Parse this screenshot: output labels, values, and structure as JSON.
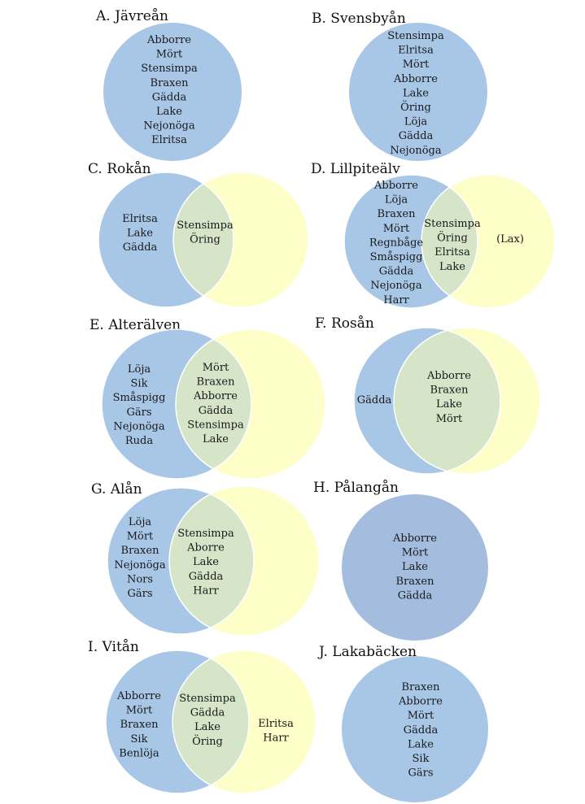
{
  "colors": {
    "blue": "#a8c7e6",
    "blue_dark": "#a4bddf",
    "yellow": "#fefec8",
    "overlap": "#d6e4c8",
    "outline": "#ffffff"
  },
  "diagrams": [
    {
      "id": "A",
      "title": "A.  Jävreån",
      "type": "single",
      "left": [
        "Abborre",
        "Mört",
        "Stensimpa",
        "Braxen",
        "Gädda",
        "Lake",
        "Nejonöga",
        "Elritsa"
      ],
      "overlap": [],
      "right": []
    },
    {
      "id": "B",
      "title": "B.  Svensbyån",
      "type": "single",
      "left": [
        "Stensimpa",
        "Elritsa",
        "Mört",
        "Abborre",
        "Lake",
        "Öring",
        "Löja",
        "Gädda",
        "Nejonöga"
      ],
      "overlap": [],
      "right": []
    },
    {
      "id": "C",
      "title": "C.  Rokån",
      "type": "venn",
      "left": [
        "Elritsa",
        "Lake",
        "Gädda"
      ],
      "overlap": [
        "Stensimpa",
        "Öring"
      ],
      "right": []
    },
    {
      "id": "D",
      "title": "D.  Lillpiteälv",
      "type": "venn",
      "left": [
        "Abborre",
        "Löja",
        "Braxen",
        "Mört",
        "Regnbåge",
        "Småspigg",
        "Gädda",
        "Nejonöga",
        "Harr"
      ],
      "overlap": [
        "Stensimpa",
        "Öring",
        "Elritsa",
        "Lake"
      ],
      "right": [
        "(Lax)"
      ]
    },
    {
      "id": "E",
      "title": "E.  Alterälven",
      "type": "venn",
      "left": [
        "Löja",
        "Sik",
        "Småspigg",
        "Gärs",
        "Nejonöga",
        "Ruda"
      ],
      "overlap": [
        "Mört",
        "Braxen",
        "Abborre",
        "Gädda",
        "Stensimpa",
        "Lake"
      ],
      "right": []
    },
    {
      "id": "F",
      "title": "F.  Rosån",
      "type": "venn",
      "left": [
        "Gädda"
      ],
      "overlap": [
        "Abborre",
        "Braxen",
        "Lake",
        "Mört"
      ],
      "right": []
    },
    {
      "id": "G",
      "title": "G.  Alån",
      "type": "venn",
      "left": [
        "Löja",
        "Mört",
        "Braxen",
        "Nejonöga",
        "Nors",
        "Gärs"
      ],
      "overlap": [
        "Stensimpa",
        "Aborre",
        "Lake",
        "Gädda",
        "Harr"
      ],
      "right": []
    },
    {
      "id": "H",
      "title": "H.  Pålangån",
      "type": "single",
      "left": [
        "Abborre",
        "Mört",
        "Lake",
        "Braxen",
        "Gädda"
      ],
      "overlap": [],
      "right": []
    },
    {
      "id": "I",
      "title": "I.  Vitån",
      "type": "venn",
      "left": [
        "Abborre",
        "Mört",
        "Braxen",
        "Sik",
        "Benlöja"
      ],
      "overlap": [
        "Stensimpa",
        "Gädda",
        "Lake",
        "Öring"
      ],
      "right": [
        "Elritsa",
        "Harr"
      ]
    },
    {
      "id": "J",
      "title": "J. Lakabäcken",
      "type": "single",
      "left": [
        "Braxen",
        "Abborre",
        "Mört",
        "Gädda",
        "Lake",
        "Sik",
        "Gärs"
      ],
      "overlap": [],
      "right": []
    }
  ]
}
